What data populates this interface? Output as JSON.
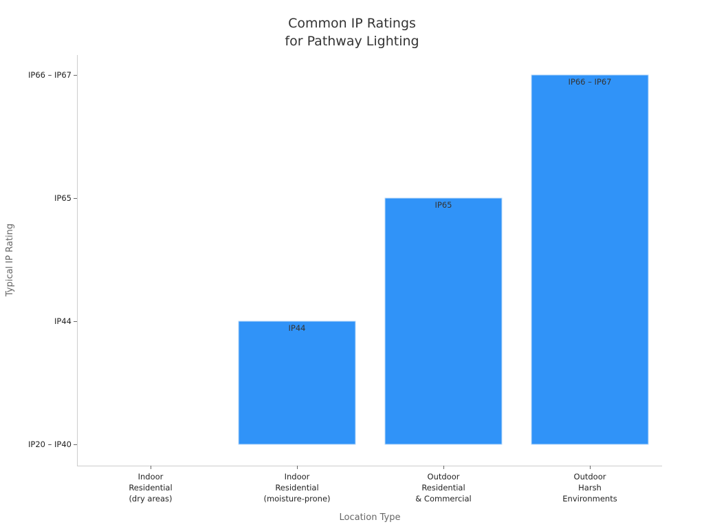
{
  "chart_data": {
    "type": "bar",
    "title": [
      "Common IP Ratings",
      "for Pathway Lighting"
    ],
    "xlabel": "Location Type",
    "ylabel": "Typical IP Rating",
    "categories": [
      [
        "Indoor",
        "Residential",
        "(dry areas)"
      ],
      [
        "Indoor",
        "Residential",
        "(moisture-prone)"
      ],
      [
        "Outdoor",
        "Residential",
        "& Commercial"
      ],
      [
        "Outdoor",
        "Harsh",
        "Environments"
      ]
    ],
    "y_ticks": [
      "IP20 – IP40",
      "IP44",
      "IP65",
      "IP66 – IP67"
    ],
    "values": [
      0,
      1,
      2,
      3
    ],
    "data_labels": [
      "",
      "IP44",
      "IP65",
      "IP66 – IP67"
    ],
    "ylim": [
      -0.17,
      3.17
    ],
    "grid": false,
    "bar_color": "#3093f8"
  }
}
